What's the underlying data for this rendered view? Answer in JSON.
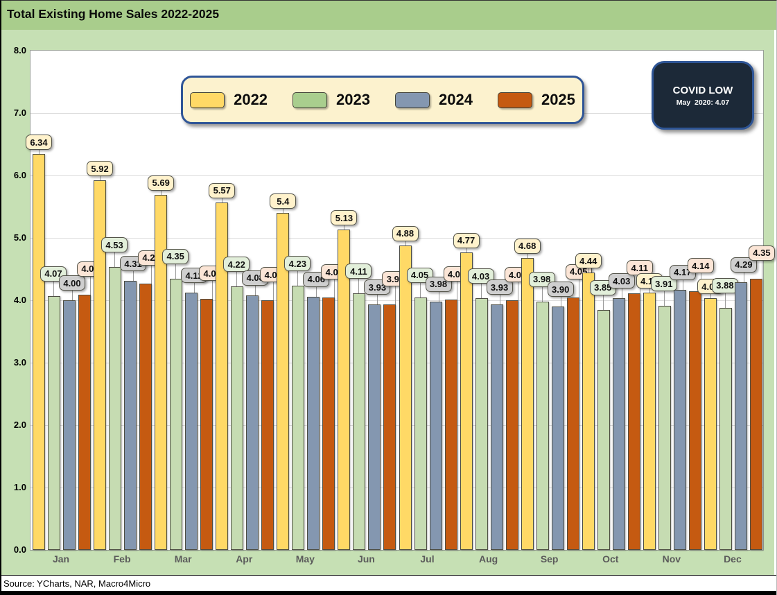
{
  "title": "Total Existing Home Sales 2022-2025",
  "source": "Source: YCharts, NAR, Macro4Micro",
  "annotation": {
    "title": "COVID LOW",
    "detail": "May  2020: 4.07"
  },
  "colors": {
    "title_bar_bg": "#A9CD8C",
    "chart_bg": "#C6E0B4",
    "plot_bg": "#FFFFFF",
    "gridline": "#DCDCDC",
    "legend_bg": "#FCF2CE",
    "legend_border": "#2F5597",
    "callout_bg": "#1C2938",
    "callout_border": "#2E5596",
    "month_label": "#5b5b5b"
  },
  "chart_data": {
    "type": "bar",
    "title": "Total Existing Home Sales 2022-2025",
    "xlabel": "",
    "ylabel": "",
    "ylim": [
      0,
      8
    ],
    "ytick_step": 1.0,
    "yticks": [
      "8.0",
      "7.0",
      "6.0",
      "5.0",
      "4.0",
      "3.0",
      "2.0",
      "1.0",
      "0.0"
    ],
    "grid": true,
    "legend_position": "top",
    "categories": [
      "Jan",
      "Feb",
      "Mar",
      "Apr",
      "May",
      "Jun",
      "Jul",
      "Aug",
      "Sep",
      "Oct",
      "Nov",
      "Dec"
    ],
    "series": [
      {
        "name": "2022",
        "color": "#FFD966",
        "bar_color": "#FFD966",
        "label_bg": "#FFF2CC",
        "values": [
          6.34,
          5.92,
          5.69,
          5.57,
          5.4,
          5.13,
          4.88,
          4.77,
          4.68,
          4.44,
          4.12,
          4.03
        ],
        "labels": [
          "6.34",
          "5.92",
          "5.69",
          "5.57",
          "5.4",
          "5.13",
          "4.88",
          "4.77",
          "4.68",
          "4.44",
          "4.12",
          "4.03"
        ]
      },
      {
        "name": "2023",
        "color": "#A9CE8E",
        "bar_color": "#C6DCB2",
        "label_bg": "#E2EFDA",
        "values": [
          4.07,
          4.53,
          4.35,
          4.22,
          4.23,
          4.11,
          4.05,
          4.03,
          3.98,
          3.85,
          3.91,
          3.88
        ],
        "labels": [
          "4.07",
          "4.53",
          "4.35",
          "4.22",
          "4.23",
          "4.11",
          "4.05",
          "4.03",
          "3.98",
          "3.85",
          "3.91",
          "3.88"
        ]
      },
      {
        "name": "2024",
        "color": "#8497B0",
        "bar_color": "#8497B0",
        "label_bg": "#CFCFCF",
        "values": [
          4.0,
          4.31,
          4.12,
          4.08,
          4.06,
          3.93,
          3.98,
          3.93,
          3.9,
          4.03,
          4.17,
          4.29
        ],
        "labels": [
          "4.00",
          "4.31",
          "4.12",
          "4.08",
          "4.06",
          "3.93",
          "3.98",
          "3.93",
          "3.90",
          "4.03",
          "4.17",
          "4.29"
        ]
      },
      {
        "name": "2025",
        "color": "#C55A11",
        "bar_color": "#C55A11",
        "label_bg": "#FBE5D6",
        "values": [
          4.09,
          4.27,
          4.02,
          4.0,
          4.04,
          3.93,
          4.01,
          4.0,
          4.05,
          4.11,
          4.14,
          4.35
        ],
        "labels": [
          "4.09",
          "4.27",
          "4.02",
          "4.00",
          "4.04",
          "3.93",
          "4.01",
          "4.00",
          "4.05",
          "4.11",
          "4.14",
          "4.35"
        ]
      }
    ]
  }
}
